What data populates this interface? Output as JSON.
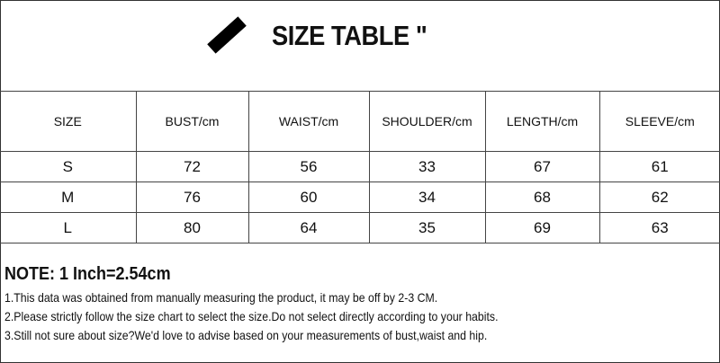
{
  "title": "SIZE TABLE \"",
  "table": {
    "headers": [
      "SIZE",
      "BUST/cm",
      "WAIST/cm",
      "SHOULDER/cm",
      "LENGTH/cm",
      "SLEEVE/cm"
    ],
    "rows": [
      [
        "S",
        "72",
        "56",
        "33",
        "67",
        "61"
      ],
      [
        "M",
        "76",
        "60",
        "34",
        "68",
        "62"
      ],
      [
        "L",
        "80",
        "64",
        "35",
        "69",
        "63"
      ]
    ]
  },
  "notes": {
    "title": "NOTE: 1 Inch=2.54cm",
    "lines": [
      "1.This data was obtained from manually measuring the product, it may be off by 2-3 CM.",
      "2.Please strictly follow the size chart to select the size.Do not select directly according to your habits.",
      "3.Still not sure about size?We'd love to advise based on your measurements of bust,waist and hip."
    ]
  }
}
